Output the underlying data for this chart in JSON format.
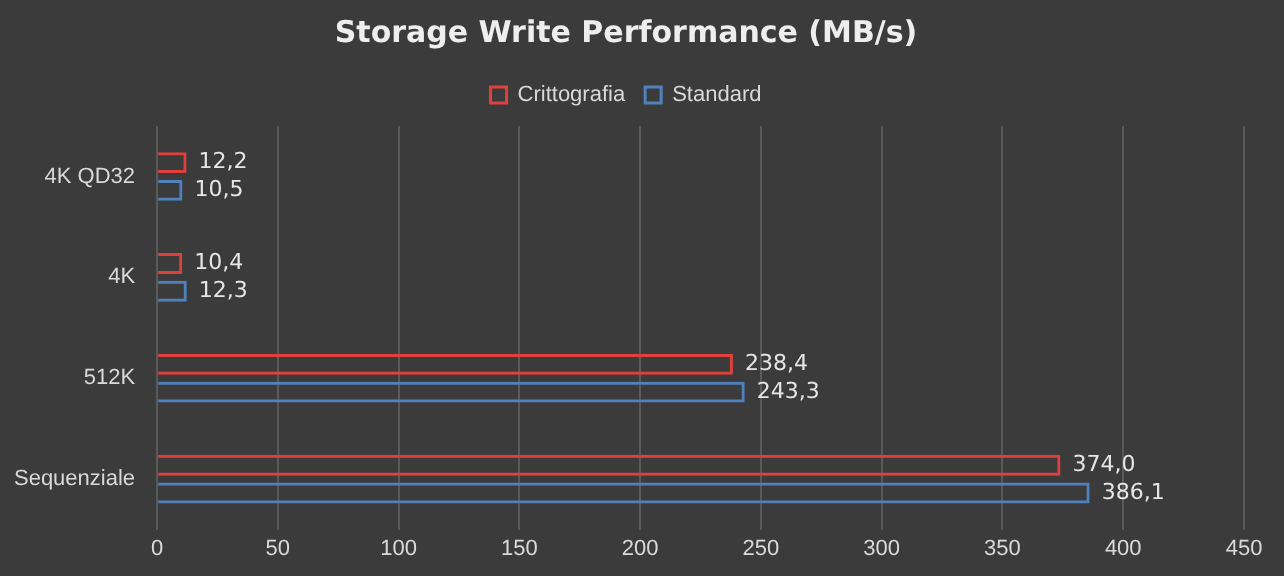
{
  "chart_data": {
    "type": "bar",
    "orientation": "horizontal",
    "title": "Storage Write Performance (MB/s)",
    "categories": [
      "4K QD32",
      "4K",
      "512K",
      "Sequenziale"
    ],
    "series": [
      {
        "name": "Crittografia",
        "color": "#e0403c",
        "values": [
          12.2,
          10.4,
          238.4,
          374.0
        ],
        "value_labels": [
          "12,2",
          "10,4",
          "238,4",
          "374,0"
        ]
      },
      {
        "name": "Standard",
        "color": "#4f81bd",
        "values": [
          10.5,
          12.3,
          243.3,
          386.1
        ],
        "value_labels": [
          "10,5",
          "12,3",
          "243,3",
          "386,1"
        ]
      }
    ],
    "xlim": [
      0,
      450
    ],
    "xticks": [
      0,
      50,
      100,
      150,
      200,
      250,
      300,
      350,
      400,
      450
    ],
    "grid": "x",
    "legend": "top"
  }
}
